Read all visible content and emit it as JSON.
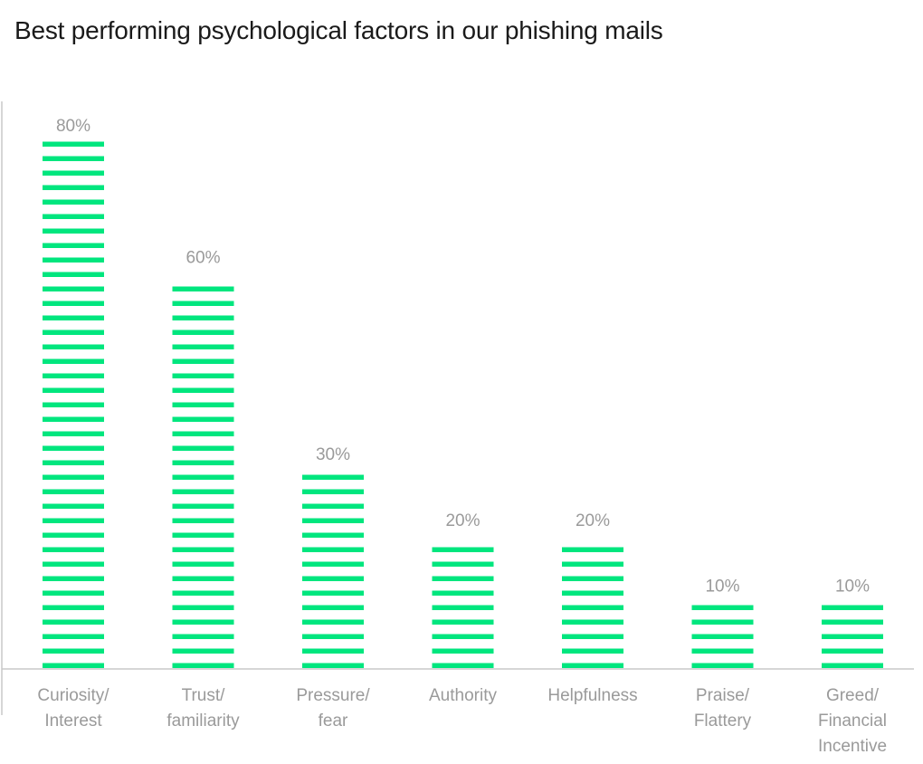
{
  "title": "Best performing psychological factors in our phishing mails",
  "colors": {
    "bar": "#00e67e",
    "axis": "#c8c8c8",
    "label": "#9a9a9a",
    "title": "#1a1a1a"
  },
  "chart_data": {
    "type": "bar",
    "title": "Best performing psychological factors in our phishing mails",
    "categories": [
      [
        "Curiosity/",
        "Interest"
      ],
      [
        "Trust/",
        "familiarity"
      ],
      [
        "Pressure/",
        "fear"
      ],
      [
        "Authority"
      ],
      [
        "Helpfulness"
      ],
      [
        "Praise/",
        "Flattery"
      ],
      [
        "Greed/",
        "Financial",
        "Incentive"
      ]
    ],
    "values": [
      80,
      60,
      30,
      20,
      20,
      10,
      10
    ],
    "data_labels": [
      "80%",
      "60%",
      "30%",
      "20%",
      "20%",
      "10%",
      "10%"
    ],
    "ylim": [
      0,
      80
    ],
    "xlabel": "",
    "ylabel": "",
    "grid": false,
    "bar_style": "striped"
  }
}
